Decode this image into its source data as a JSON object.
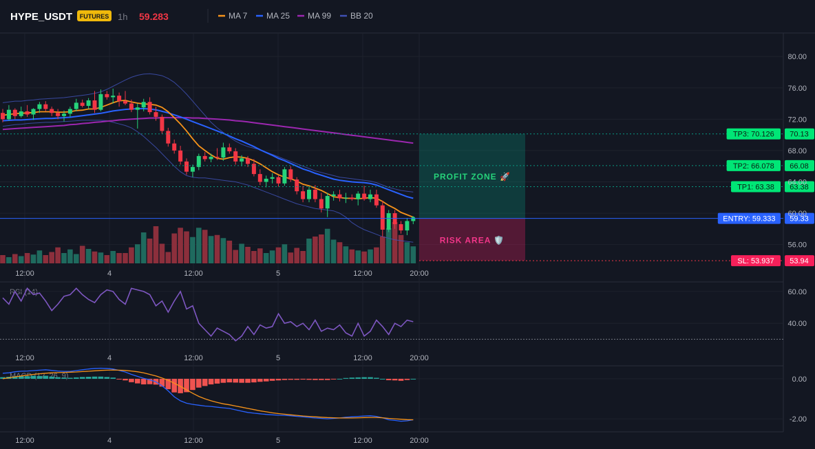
{
  "header": {
    "symbol": "HYPE_USDT",
    "badge": "FUTURES",
    "timeframe": "1h",
    "price": "59.283",
    "legend": [
      {
        "label": "MA 7",
        "color": "#f7931a"
      },
      {
        "label": "MA 25",
        "color": "#2962ff"
      },
      {
        "label": "MA 99",
        "color": "#9c27b0"
      },
      {
        "label": "BB 20",
        "color": "#3f51b5"
      }
    ]
  },
  "chart_data": [
    {
      "type": "candlestick",
      "panel": "price",
      "x_ticks": [
        "12:00",
        "4",
        "12:00",
        "5",
        "12:00",
        "20:00"
      ],
      "y_ticks": [
        "80.00",
        "76.00",
        "72.00",
        "68.00",
        "64.00",
        "60.00",
        "56.00"
      ],
      "ylim": [
        53.6,
        83.0
      ],
      "ohlc": [
        [
          72.8,
          73.3,
          71.6,
          72.0
        ],
        [
          72.0,
          73.8,
          71.8,
          73.2
        ],
        [
          73.2,
          73.4,
          72.0,
          72.4
        ],
        [
          72.4,
          73.6,
          72.2,
          73.0
        ],
        [
          73.0,
          73.8,
          72.3,
          72.6
        ],
        [
          72.6,
          73.4,
          71.9,
          73.3
        ],
        [
          73.3,
          74.2,
          72.8,
          73.9
        ],
        [
          73.9,
          74.3,
          73.0,
          73.3
        ],
        [
          73.3,
          73.6,
          72.4,
          72.8
        ],
        [
          72.8,
          73.3,
          72.0,
          72.4
        ],
        [
          72.4,
          73.1,
          71.7,
          72.7
        ],
        [
          72.7,
          73.6,
          72.3,
          73.3
        ],
        [
          73.3,
          74.6,
          73.0,
          74.1
        ],
        [
          74.1,
          74.5,
          73.5,
          73.7
        ],
        [
          73.7,
          74.7,
          73.3,
          74.4
        ],
        [
          74.4,
          75.6,
          72.8,
          73.2
        ],
        [
          73.2,
          75.8,
          73.0,
          75.2
        ],
        [
          75.2,
          75.6,
          74.5,
          74.8
        ],
        [
          74.8,
          75.9,
          74.0,
          75.0
        ],
        [
          75.0,
          75.4,
          73.6,
          74.3
        ],
        [
          74.3,
          75.6,
          73.8,
          74.0
        ],
        [
          74.0,
          74.5,
          72.9,
          73.2
        ],
        [
          73.2,
          74.0,
          70.8,
          73.5
        ],
        [
          73.5,
          74.6,
          73.0,
          74.2
        ],
        [
          74.2,
          74.8,
          72.6,
          72.9
        ],
        [
          72.9,
          73.6,
          71.8,
          72.3
        ],
        [
          72.3,
          72.6,
          70.1,
          70.5
        ],
        [
          70.5,
          70.9,
          68.5,
          68.9
        ],
        [
          68.9,
          69.4,
          67.6,
          68.0
        ],
        [
          68.0,
          68.6,
          66.2,
          66.6
        ],
        [
          66.6,
          67.0,
          64.9,
          65.3
        ],
        [
          65.3,
          66.2,
          64.6,
          65.9
        ],
        [
          65.9,
          67.6,
          65.5,
          67.3
        ],
        [
          67.3,
          67.8,
          66.6,
          66.9
        ],
        [
          66.9,
          67.6,
          66.5,
          67.2
        ],
        [
          67.2,
          68.3,
          66.8,
          67.1
        ],
        [
          67.1,
          69.0,
          66.7,
          68.4
        ],
        [
          68.4,
          68.9,
          67.6,
          67.9
        ],
        [
          67.9,
          68.3,
          66.2,
          66.6
        ],
        [
          66.6,
          67.4,
          66.0,
          67.0
        ],
        [
          67.0,
          67.3,
          65.9,
          66.3
        ],
        [
          66.3,
          66.9,
          64.7,
          65.0
        ],
        [
          65.0,
          65.6,
          63.6,
          64.0
        ],
        [
          64.0,
          64.8,
          63.3,
          64.4
        ],
        [
          64.4,
          65.1,
          63.8,
          64.6
        ],
        [
          64.6,
          64.8,
          63.4,
          63.8
        ],
        [
          63.8,
          65.9,
          63.5,
          65.6
        ],
        [
          65.6,
          66.0,
          64.0,
          64.3
        ],
        [
          64.3,
          64.6,
          62.4,
          62.8
        ],
        [
          62.8,
          63.5,
          61.4,
          61.8
        ],
        [
          61.8,
          63.4,
          61.4,
          63.0
        ],
        [
          63.0,
          63.6,
          61.4,
          61.8
        ],
        [
          61.8,
          62.6,
          60.1,
          60.6
        ],
        [
          60.6,
          62.6,
          59.5,
          62.2
        ],
        [
          62.2,
          62.8,
          61.6,
          62.4
        ],
        [
          62.4,
          63.0,
          61.5,
          61.9
        ],
        [
          61.9,
          62.6,
          61.3,
          62.0
        ],
        [
          62.0,
          62.4,
          61.6,
          61.8
        ],
        [
          61.8,
          62.8,
          61.0,
          62.5
        ],
        [
          62.5,
          63.5,
          61.6,
          61.8
        ],
        [
          61.8,
          63.0,
          61.4,
          62.4
        ],
        [
          62.4,
          63.0,
          60.7,
          61.0
        ],
        [
          61.0,
          61.6,
          57.0,
          57.9
        ],
        [
          57.9,
          60.4,
          57.6,
          60.0
        ],
        [
          60.0,
          60.4,
          58.0,
          58.6
        ],
        [
          58.6,
          59.0,
          57.4,
          57.8
        ],
        [
          57.8,
          59.4,
          57.2,
          59.0
        ],
        [
          59.0,
          59.6,
          58.6,
          59.3
        ]
      ],
      "volume": [
        0.16,
        0.12,
        0.18,
        0.14,
        0.2,
        0.17,
        0.25,
        0.16,
        0.22,
        0.31,
        0.2,
        0.27,
        0.18,
        0.34,
        0.28,
        0.23,
        0.21,
        0.16,
        0.24,
        0.2,
        0.2,
        0.31,
        0.37,
        0.6,
        0.48,
        0.72,
        0.38,
        0.22,
        0.58,
        0.69,
        0.62,
        0.51,
        0.69,
        0.65,
        0.53,
        0.55,
        0.49,
        0.44,
        0.26,
        0.38,
        0.32,
        0.24,
        0.29,
        0.2,
        0.25,
        0.31,
        0.37,
        0.21,
        0.3,
        0.24,
        0.48,
        0.52,
        0.56,
        0.67,
        0.46,
        0.41,
        0.33,
        0.27,
        0.25,
        0.23,
        0.27,
        0.31,
        0.52,
        0.68,
        0.8,
        0.55,
        0.41,
        0.33
      ],
      "ma7": [
        72.5,
        72.6,
        72.7,
        72.75,
        72.8,
        72.85,
        72.95,
        72.95,
        72.95,
        72.9,
        72.9,
        72.95,
        73.1,
        73.15,
        73.3,
        73.3,
        73.5,
        73.8,
        74.1,
        74.35,
        74.4,
        74.2,
        74.05,
        73.95,
        73.9,
        73.8,
        73.5,
        72.95,
        72.2,
        71.4,
        70.5,
        69.5,
        68.6,
        68.0,
        67.45,
        67.0,
        66.9,
        67.1,
        67.2,
        67.15,
        67.0,
        66.7,
        66.3,
        65.8,
        65.3,
        64.9,
        64.6,
        64.4,
        64.1,
        63.7,
        63.5,
        63.2,
        62.9,
        62.5,
        62.1,
        62.0,
        61.9,
        61.9,
        61.85,
        61.9,
        62.0,
        61.9,
        61.5,
        61.0,
        60.6,
        60.1,
        59.8,
        59.5
      ],
      "ma25": [
        71.8,
        71.85,
        71.9,
        71.9,
        71.95,
        72.0,
        72.05,
        72.1,
        72.1,
        72.15,
        72.2,
        72.25,
        72.35,
        72.45,
        72.55,
        72.65,
        72.75,
        72.9,
        73.05,
        73.15,
        73.25,
        73.3,
        73.35,
        73.35,
        73.3,
        73.2,
        73.0,
        72.8,
        72.55,
        72.3,
        72.0,
        71.7,
        71.4,
        71.1,
        70.8,
        70.5,
        70.2,
        69.85,
        69.5,
        69.2,
        68.85,
        68.5,
        68.1,
        67.75,
        67.4,
        67.0,
        66.7,
        66.35,
        66.0,
        65.65,
        65.4,
        65.1,
        64.85,
        64.6,
        64.35,
        64.2,
        64.1,
        64.0,
        63.95,
        63.9,
        63.8,
        63.6,
        63.3,
        63.0,
        62.7,
        62.4,
        62.1,
        61.9
      ],
      "ma99": [
        70.7,
        70.75,
        70.8,
        70.85,
        70.9,
        70.95,
        71.0,
        71.05,
        71.1,
        71.15,
        71.2,
        71.3,
        71.35,
        71.45,
        71.5,
        71.6,
        71.65,
        71.75,
        71.8,
        71.9,
        71.95,
        72.0,
        72.05,
        72.1,
        72.15,
        72.15,
        72.2,
        72.2,
        72.2,
        72.2,
        72.2,
        72.15,
        72.15,
        72.1,
        72.05,
        72.0,
        71.95,
        71.9,
        71.8,
        71.75,
        71.65,
        71.55,
        71.45,
        71.35,
        71.25,
        71.15,
        71.05,
        70.95,
        70.85,
        70.75,
        70.65,
        70.55,
        70.45,
        70.35,
        70.25,
        70.15,
        70.05,
        69.95,
        69.85,
        69.75,
        69.65,
        69.55,
        69.45,
        69.35,
        69.25,
        69.15,
        69.05,
        68.95
      ],
      "bb_upper": [
        74.1,
        74.2,
        74.3,
        74.3,
        74.4,
        74.45,
        74.55,
        74.6,
        74.65,
        74.7,
        74.75,
        74.85,
        74.95,
        75.05,
        75.15,
        75.3,
        75.5,
        75.8,
        76.2,
        76.6,
        77.0,
        77.35,
        77.6,
        77.75,
        77.8,
        77.7,
        77.55,
        77.2,
        76.7,
        76.0,
        75.2,
        74.3,
        73.4,
        72.5,
        71.6,
        70.9,
        70.3,
        69.7,
        69.2,
        68.8,
        68.5,
        68.3,
        68.1,
        67.8,
        67.5,
        67.2,
        66.9,
        66.6,
        66.3,
        66.0,
        65.7,
        65.4,
        65.2,
        65.0,
        64.8,
        64.6,
        64.5,
        64.4,
        64.3,
        64.2,
        64.1,
        63.9,
        63.6,
        63.3,
        63.1,
        62.9,
        62.8,
        62.7
      ],
      "bb_lower": [
        71.1,
        71.2,
        71.3,
        71.35,
        71.45,
        71.5,
        71.55,
        71.6,
        71.6,
        71.65,
        71.7,
        71.75,
        71.8,
        71.85,
        71.85,
        71.85,
        71.85,
        71.8,
        71.6,
        71.4,
        71.2,
        70.9,
        70.4,
        69.8,
        69.1,
        68.4,
        67.6,
        66.8,
        66.0,
        65.3,
        64.8,
        64.6,
        64.5,
        64.5,
        64.4,
        64.3,
        64.2,
        64.1,
        64.0,
        63.8,
        63.6,
        63.3,
        63.0,
        62.7,
        62.4,
        62.1,
        61.8,
        61.5,
        61.2,
        61.0,
        60.8,
        60.6,
        60.5,
        60.4,
        60.3,
        60.0,
        59.5,
        58.8,
        58.3,
        57.9,
        57.6,
        57.3,
        57.0,
        56.8,
        56.6,
        56.5,
        56.4,
        56.3
      ]
    },
    {
      "type": "line",
      "panel": "rsi",
      "title": "RSI (14)",
      "y_ticks": [
        "60.00",
        "40.00"
      ],
      "ylim": [
        25,
        66
      ],
      "values": [
        56,
        52,
        60,
        54,
        62,
        58,
        59,
        54,
        48,
        52,
        57,
        58,
        62,
        58,
        55,
        53,
        58,
        61,
        60,
        55,
        52,
        62,
        61,
        60,
        58,
        51,
        54,
        47,
        54,
        60,
        49,
        51,
        40,
        36,
        32,
        37,
        35,
        33,
        29,
        32,
        38,
        33,
        39,
        37,
        38,
        46,
        40,
        41,
        38,
        40,
        36,
        42,
        35,
        37,
        36,
        39,
        34,
        32,
        40,
        32,
        35,
        42,
        38,
        33,
        40,
        38,
        42,
        41
      ],
      "reference": 30
    },
    {
      "type": "line",
      "panel": "macd",
      "title": "MACD (12, 26, 9)",
      "y_ticks": [
        "0.00",
        "-2.00"
      ],
      "ylim": [
        -2.65,
        0.65
      ],
      "macd": [
        0.28,
        0.3,
        0.35,
        0.38,
        0.39,
        0.41,
        0.43,
        0.45,
        0.42,
        0.39,
        0.37,
        0.37,
        0.41,
        0.45,
        0.49,
        0.52,
        0.53,
        0.52,
        0.49,
        0.42,
        0.34,
        0.22,
        0.12,
        0.02,
        -0.05,
        -0.15,
        -0.35,
        -0.6,
        -0.9,
        -1.1,
        -1.22,
        -1.28,
        -1.32,
        -1.36,
        -1.38,
        -1.42,
        -1.45,
        -1.48,
        -1.55,
        -1.62,
        -1.68,
        -1.72,
        -1.75,
        -1.78,
        -1.8,
        -1.82,
        -1.83,
        -1.85,
        -1.88,
        -1.9,
        -1.93,
        -1.96,
        -1.98,
        -2.0,
        -1.98,
        -1.96,
        -1.92,
        -1.9,
        -1.88,
        -1.86,
        -1.85,
        -1.88,
        -1.95,
        -2.05,
        -2.08,
        -2.12,
        -2.1,
        -2.05
      ],
      "signal": [
        0.0,
        0.05,
        0.1,
        0.14,
        0.18,
        0.22,
        0.25,
        0.28,
        0.3,
        0.31,
        0.32,
        0.33,
        0.34,
        0.36,
        0.38,
        0.4,
        0.42,
        0.43,
        0.44,
        0.43,
        0.42,
        0.39,
        0.35,
        0.3,
        0.22,
        0.14,
        0.04,
        -0.08,
        -0.22,
        -0.38,
        -0.55,
        -0.72,
        -0.88,
        -1.0,
        -1.1,
        -1.18,
        -1.25,
        -1.3,
        -1.36,
        -1.42,
        -1.48,
        -1.54,
        -1.6,
        -1.65,
        -1.7,
        -1.74,
        -1.77,
        -1.8,
        -1.83,
        -1.86,
        -1.88,
        -1.9,
        -1.92,
        -1.94,
        -1.95,
        -1.96,
        -1.96,
        -1.96,
        -1.95,
        -1.94,
        -1.93,
        -1.93,
        -1.95,
        -1.98,
        -2.0,
        -2.02,
        -2.04,
        -2.05
      ],
      "histogram": [
        0.08,
        0.1,
        0.12,
        0.14,
        0.13,
        0.15,
        0.14,
        0.15,
        0.11,
        0.08,
        0.06,
        0.05,
        0.07,
        0.09,
        0.1,
        0.11,
        0.11,
        0.09,
        0.06,
        -0.01,
        -0.08,
        -0.17,
        -0.23,
        -0.28,
        -0.27,
        -0.29,
        -0.39,
        -0.52,
        -0.68,
        -0.72,
        -0.67,
        -0.56,
        -0.44,
        -0.36,
        -0.28,
        -0.24,
        -0.2,
        -0.18,
        -0.19,
        -0.2,
        -0.2,
        -0.18,
        -0.15,
        -0.13,
        -0.1,
        -0.08,
        -0.06,
        -0.05,
        -0.05,
        -0.04,
        -0.05,
        -0.06,
        -0.06,
        -0.06,
        -0.03,
        0.0,
        0.04,
        0.06,
        0.07,
        0.08,
        0.08,
        0.05,
        0.0,
        -0.07,
        -0.08,
        -0.1,
        -0.06,
        0.0
      ]
    }
  ],
  "levels": [
    {
      "label": "TP3: 70.126",
      "axis_label": "70.13",
      "price": 70.126,
      "color": "#089981",
      "bg": "#00e676",
      "text_color": "#0b1f14"
    },
    {
      "label": "TP2: 66.078",
      "axis_label": "66.08",
      "price": 66.078,
      "color": "#089981",
      "bg": "#00e676",
      "text_color": "#0b1f14"
    },
    {
      "label": "TP1: 63.38",
      "axis_label": "63.38",
      "price": 63.38,
      "color": "#089981",
      "bg": "#00e676",
      "text_color": "#0b1f14"
    },
    {
      "label": "ENTRY: 59.333",
      "axis_label": "59.33",
      "price": 59.333,
      "color": "#2962ff",
      "bg": "#2962ff",
      "text_color": "#ffffff"
    },
    {
      "label": "SL: 53.937",
      "axis_label": "53.94",
      "price": 53.937,
      "color": "#f23645",
      "bg": "#f7205a",
      "text_color": "#ffffff"
    }
  ],
  "zones": {
    "profit_label": "PROFIT ZONE 🚀",
    "risk_label": "RISK AREA 🛡️",
    "profit_color": "#089981",
    "risk_color": "#e91e63"
  },
  "colors": {
    "up": "#26d37a",
    "down": "#f23645",
    "vol_up": "#1f6a5e",
    "vol_down": "#8c2f3c",
    "rsi": "#7e57c2",
    "macd": "#2962ff",
    "signal": "#f7931a",
    "hist_up": "#26a69a",
    "hist_down": "#ef5350"
  }
}
